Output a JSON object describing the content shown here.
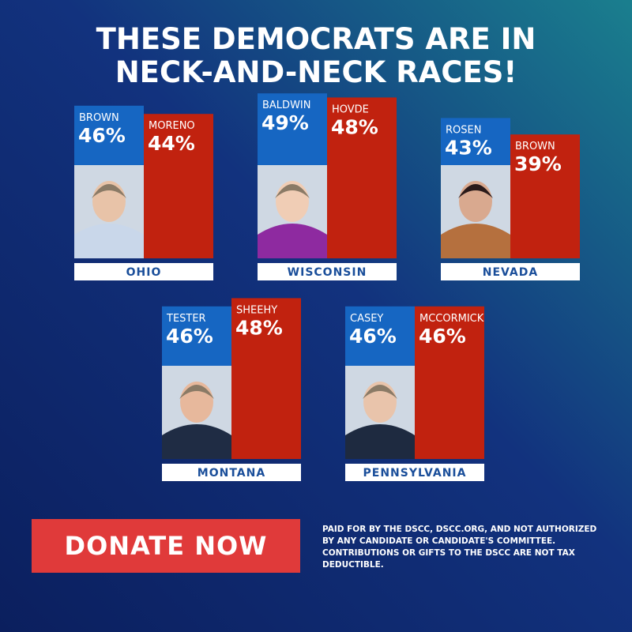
{
  "header": {
    "title_lines": [
      "THESE DEMOCRATS ARE IN",
      "NECK-AND-NECK RACES!"
    ]
  },
  "chart_data": [
    {
      "type": "bar",
      "title": "OHIO",
      "categories": [
        "BROWN",
        "MORENO"
      ],
      "values": [
        46,
        44
      ],
      "value_labels": [
        "46%",
        "44%"
      ],
      "colors": [
        "#1666c2",
        "#c1220f"
      ]
    },
    {
      "type": "bar",
      "title": "WISCONSIN",
      "categories": [
        "BALDWIN",
        "HOVDE"
      ],
      "values": [
        49,
        48
      ],
      "value_labels": [
        "49%",
        "48%"
      ],
      "colors": [
        "#1666c2",
        "#c1220f"
      ]
    },
    {
      "type": "bar",
      "title": "NEVADA",
      "categories": [
        "ROSEN",
        "BROWN"
      ],
      "values": [
        43,
        39
      ],
      "value_labels": [
        "43%",
        "39%"
      ],
      "colors": [
        "#1666c2",
        "#c1220f"
      ]
    },
    {
      "type": "bar",
      "title": "MONTANA",
      "categories": [
        "TESTER",
        "SHEEHY"
      ],
      "values": [
        46,
        48
      ],
      "value_labels": [
        "46%",
        "48%"
      ],
      "colors": [
        "#1666c2",
        "#c1220f"
      ]
    },
    {
      "type": "bar",
      "title": "PENNSYLVANIA",
      "categories": [
        "CASEY",
        "MCCORMICK"
      ],
      "values": [
        46,
        46
      ],
      "value_labels": [
        "46%",
        "46%"
      ],
      "colors": [
        "#1666c2",
        "#c1220f"
      ]
    }
  ],
  "button": {
    "label": "DONATE NOW"
  },
  "disclaimer": {
    "lines": [
      "PAID FOR BY THE DSCC, DSCC.ORG, AND NOT AUTHORIZED",
      "BY ANY CANDIDATE OR CANDIDATE'S COMMITTEE.",
      "CONTRIBUTIONS OR GIFTS TO THE DSCC ARE NOT TAX",
      "DEDUCTIBLE."
    ]
  }
}
